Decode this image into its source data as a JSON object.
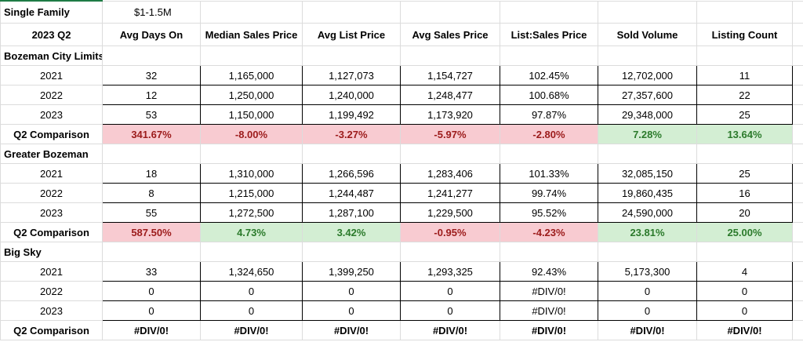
{
  "header": {
    "label": "Single Family",
    "value": "$1-1.5M"
  },
  "columns": [
    "2023 Q2",
    "Avg Days On",
    "Median Sales Price",
    "Avg List Price",
    "Avg Sales Price",
    "List:Sales Price",
    "Sold Volume",
    "Listing Count"
  ],
  "tones": {
    "negative": {
      "fill": "#f8cbd1",
      "text": "#9c1b1b"
    },
    "positive": {
      "fill": "#d3eed3",
      "text": "#2b7a2b"
    }
  },
  "sections": [
    {
      "name": "Bozeman City Limits",
      "rows": [
        {
          "label": "2021",
          "cells": [
            "32",
            "1,165,000",
            "1,127,073",
            "1,154,727",
            "102.45%",
            "12,702,000",
            "11"
          ]
        },
        {
          "label": "2022",
          "cells": [
            "12",
            "1,250,000",
            "1,240,000",
            "1,248,477",
            "100.68%",
            "27,357,600",
            "22"
          ]
        },
        {
          "label": "2023",
          "cells": [
            "53",
            "1,150,000",
            "1,199,492",
            "1,173,920",
            "97.87%",
            "29,348,000",
            "25"
          ]
        }
      ],
      "comparison": {
        "label": "Q2 Comparison",
        "cells": [
          "341.67%",
          "-8.00%",
          "-3.27%",
          "-5.97%",
          "-2.80%",
          "7.28%",
          "13.64%"
        ],
        "tones": [
          "negative",
          "negative",
          "negative",
          "negative",
          "negative",
          "positive",
          "positive"
        ]
      }
    },
    {
      "name": "Greater Bozeman",
      "rows": [
        {
          "label": "2021",
          "cells": [
            "18",
            "1,310,000",
            "1,266,596",
            "1,283,406",
            "101.33%",
            "32,085,150",
            "25"
          ]
        },
        {
          "label": "2022",
          "cells": [
            "8",
            "1,215,000",
            "1,244,487",
            "1,241,277",
            "99.74%",
            "19,860,435",
            "16"
          ]
        },
        {
          "label": "2023",
          "cells": [
            "55",
            "1,272,500",
            "1,287,100",
            "1,229,500",
            "95.52%",
            "24,590,000",
            "20"
          ]
        }
      ],
      "comparison": {
        "label": "Q2 Comparison",
        "cells": [
          "587.50%",
          "4.73%",
          "3.42%",
          "-0.95%",
          "-4.23%",
          "23.81%",
          "25.00%"
        ],
        "tones": [
          "negative",
          "positive",
          "positive",
          "negative",
          "negative",
          "positive",
          "positive"
        ]
      }
    },
    {
      "name": "Big Sky",
      "rows": [
        {
          "label": "2021",
          "cells": [
            "33",
            "1,324,650",
            "1,399,250",
            "1,293,325",
            "92.43%",
            "5,173,300",
            "4"
          ]
        },
        {
          "label": "2022",
          "cells": [
            "0",
            "0",
            "0",
            "0",
            "#DIV/0!",
            "0",
            "0"
          ]
        },
        {
          "label": "2023",
          "cells": [
            "0",
            "0",
            "0",
            "0",
            "#DIV/0!",
            "0",
            "0"
          ]
        }
      ],
      "comparison": {
        "label": "Q2 Comparison",
        "cells": [
          "#DIV/0!",
          "#DIV/0!",
          "#DIV/0!",
          "#DIV/0!",
          "#DIV/0!",
          "#DIV/0!",
          "#DIV/0!"
        ],
        "tones": [
          null,
          null,
          null,
          null,
          null,
          null,
          null
        ]
      }
    }
  ]
}
